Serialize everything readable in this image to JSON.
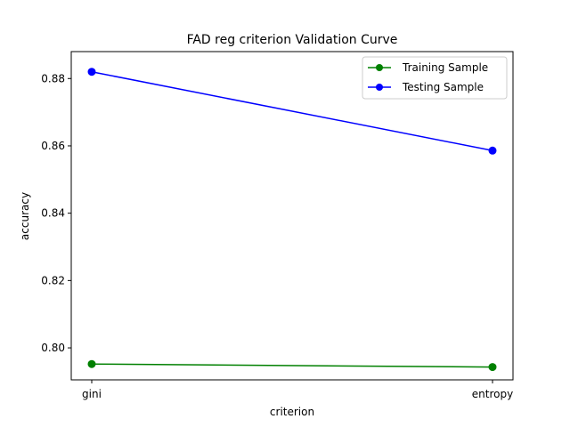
{
  "chart_data": {
    "type": "line",
    "title": "FAD reg criterion Validation Curve",
    "xlabel": "criterion",
    "ylabel": "accuracy",
    "categories": [
      "gini",
      "entropy"
    ],
    "ylim": [
      0.7905,
      0.888
    ],
    "yticks": [
      "0.80",
      "0.82",
      "0.84",
      "0.86",
      "0.88"
    ],
    "grid": false,
    "legend_position": "top-right",
    "series": [
      {
        "name": "Training Sample",
        "color": "#008000",
        "values": [
          0.7952,
          0.7943
        ]
      },
      {
        "name": "Testing Sample",
        "color": "#0000ff",
        "values": [
          0.882,
          0.8586
        ]
      }
    ]
  }
}
